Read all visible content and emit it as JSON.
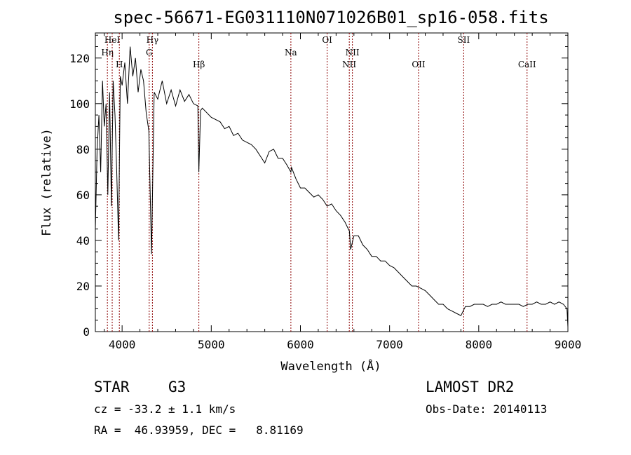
{
  "chart_data": {
    "type": "line",
    "title": "spec-56671-EG031110N071026B01_sp16-058.fits",
    "xlabel": "Wavelength (Å)",
    "ylabel": "Flux (relative)",
    "xlim": [
      3700,
      9000
    ],
    "ylim": [
      0,
      131
    ],
    "grid": false,
    "xticks": [
      4000,
      5000,
      6000,
      7000,
      8000,
      9000
    ],
    "yticks": [
      0,
      20,
      40,
      60,
      80,
      100,
      120
    ],
    "line_color": "#000000",
    "marker_color": "#8b0000",
    "lines": [
      {
        "label": "Hη",
        "wave": 3835,
        "row": 2
      },
      {
        "label": "HeI",
        "wave": 3889,
        "row": 1
      },
      {
        "label": "H",
        "wave": 3969,
        "row": 3
      },
      {
        "label": "Hγ",
        "wave": 4340,
        "row": 1
      },
      {
        "label": "G",
        "wave": 4304,
        "row": 2
      },
      {
        "label": "Hβ",
        "wave": 4861,
        "row": 3
      },
      {
        "label": "Na",
        "wave": 5893,
        "row": 2
      },
      {
        "label": "OI",
        "wave": 6300,
        "row": 1
      },
      {
        "label": "NII",
        "wave": 6583,
        "row": 2
      },
      {
        "label": "NII",
        "wave": 6548,
        "row": 3
      },
      {
        "label": "OII",
        "wave": 7325,
        "row": 3
      },
      {
        "label": "SII",
        "wave": 7831,
        "row": 1
      },
      {
        "label": "CaII",
        "wave": 8542,
        "row": 3
      }
    ],
    "series": [
      {
        "x": [
          3700,
          3720,
          3740,
          3760,
          3780,
          3800,
          3820,
          3840,
          3860,
          3880,
          3900,
          3920,
          3940,
          3960,
          3980,
          4000,
          4030,
          4060,
          4090,
          4120,
          4150,
          4180,
          4210,
          4240,
          4270,
          4300,
          4330,
          4360,
          4400,
          4450,
          4500,
          4550,
          4600,
          4650,
          4700,
          4750,
          4800,
          4850,
          4861,
          4880,
          4900,
          4950,
          5000,
          5050,
          5100,
          5150,
          5200,
          5250,
          5300,
          5350,
          5400,
          5450,
          5500,
          5550,
          5600,
          5650,
          5700,
          5750,
          5800,
          5850,
          5893,
          5900,
          5950,
          6000,
          6050,
          6100,
          6150,
          6200,
          6250,
          6300,
          6350,
          6400,
          6450,
          6500,
          6550,
          6563,
          6600,
          6650,
          6700,
          6750,
          6800,
          6850,
          6900,
          6950,
          7000,
          7050,
          7100,
          7150,
          7200,
          7250,
          7300,
          7350,
          7400,
          7450,
          7500,
          7550,
          7600,
          7650,
          7700,
          7750,
          7800,
          7850,
          7900,
          7950,
          8000,
          8050,
          8100,
          8150,
          8200,
          8250,
          8300,
          8350,
          8400,
          8450,
          8500,
          8550,
          8600,
          8650,
          8700,
          8750,
          8800,
          8850,
          8900,
          8950,
          8990,
          9000
        ],
        "y": [
          45,
          80,
          95,
          70,
          110,
          90,
          100,
          60,
          105,
          55,
          110,
          95,
          70,
          40,
          112,
          108,
          118,
          100,
          125,
          112,
          120,
          105,
          115,
          110,
          96,
          88,
          34,
          105,
          102,
          110,
          100,
          106,
          99,
          106,
          101,
          104,
          100,
          99,
          70,
          97,
          98,
          96,
          94,
          93,
          92,
          89,
          90,
          86,
          87,
          84,
          83,
          82,
          80,
          77,
          74,
          79,
          80,
          76,
          76,
          73,
          70,
          72,
          67,
          63,
          63,
          61,
          59,
          60,
          58,
          55,
          56,
          53,
          51,
          48,
          44,
          36,
          42,
          42,
          38,
          36,
          33,
          33,
          31,
          31,
          29,
          28,
          26,
          24,
          22,
          20,
          20,
          19,
          18,
          16,
          14,
          12,
          12,
          10,
          9,
          8,
          7,
          11,
          11,
          12,
          12,
          12,
          11,
          12,
          12,
          13,
          12,
          12,
          12,
          12,
          11,
          12,
          12,
          13,
          12,
          12,
          13,
          12,
          13,
          12,
          10,
          2
        ]
      }
    ]
  },
  "info": {
    "obj_class": "STAR",
    "subclass": "G3",
    "survey": "LAMOST DR2",
    "cz": "cz = -33.2 ± 1.1 km/s",
    "obs_date": "Obs-Date: 20140113",
    "radec": "RA =  46.93959, DEC =   8.81169"
  }
}
